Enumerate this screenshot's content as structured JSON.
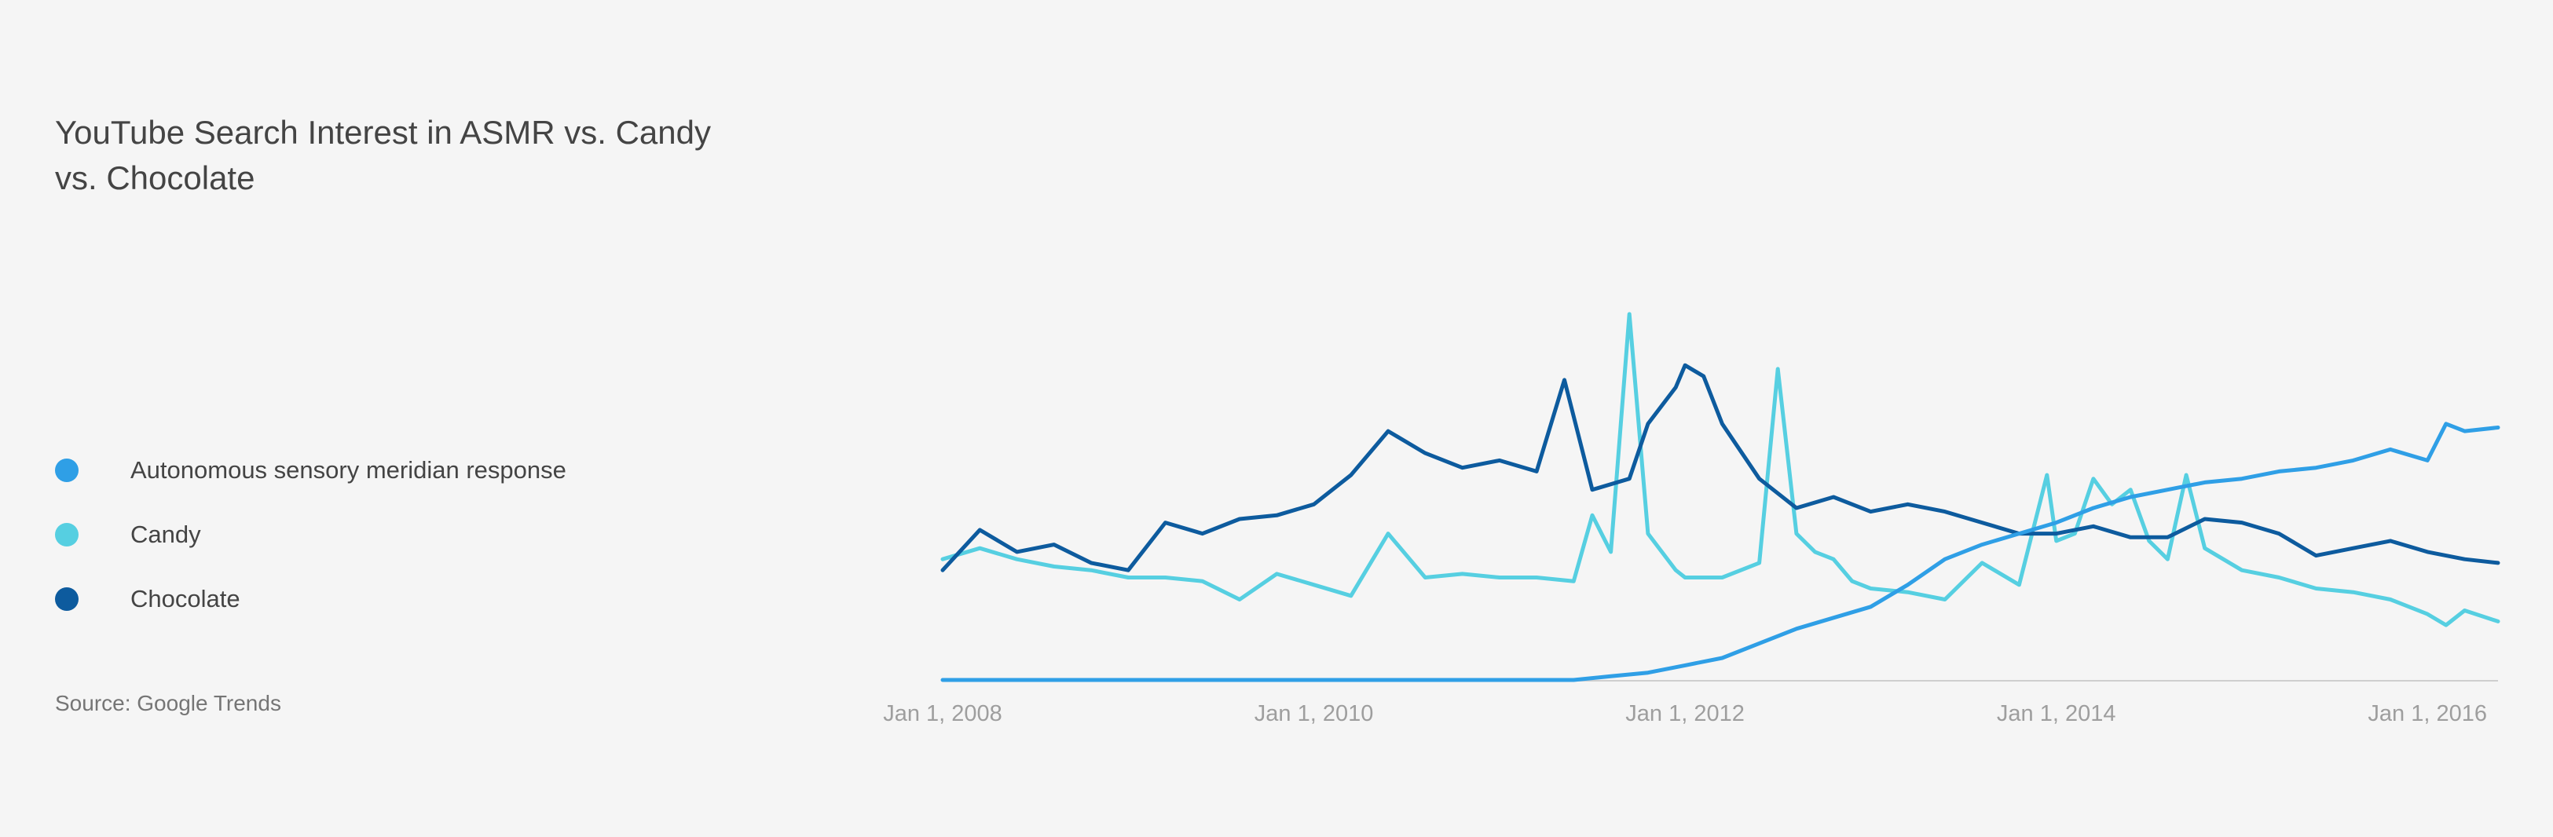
{
  "chart_data": {
    "type": "line",
    "title": "YouTube Search Interest in ASMR vs. Candy vs. Chocolate",
    "xlabel": "",
    "ylabel": "",
    "source": "Source: Google Trends",
    "x_ticks": [
      "Jan 1, 2008",
      "Jan 1, 2010",
      "Jan 1, 2012",
      "Jan 1, 2014",
      "Jan 1, 2016"
    ],
    "x_tick_values": [
      2008,
      2010,
      2012,
      2014,
      2016
    ],
    "xlim": [
      2008,
      2016.38
    ],
    "ylim": [
      0,
      100
    ],
    "grid": false,
    "legend_position": "left",
    "series": [
      {
        "name": "Autonomous sensory meridian response",
        "color": "#2f9fe6",
        "x": [
          2008,
          2009,
          2010,
          2011,
          2011.2,
          2011.4,
          2011.6,
          2011.8,
          2012,
          2012.2,
          2012.4,
          2012.6,
          2012.8,
          2013,
          2013.2,
          2013.4,
          2013.6,
          2013.8,
          2014,
          2014.2,
          2014.4,
          2014.6,
          2014.8,
          2015,
          2015.2,
          2015.4,
          2015.6,
          2015.8,
          2016,
          2016.1,
          2016.2,
          2016.38
        ],
        "values": [
          0,
          0,
          0,
          0,
          0,
          0,
          1,
          2,
          4,
          6,
          10,
          14,
          17,
          20,
          26,
          33,
          37,
          40,
          43,
          47,
          50,
          52,
          54,
          55,
          57,
          58,
          60,
          63,
          60,
          70,
          68,
          69
        ]
      },
      {
        "name": "Candy",
        "color": "#56cfe1",
        "x": [
          2008,
          2008.2,
          2008.4,
          2008.6,
          2008.8,
          2009,
          2009.2,
          2009.4,
          2009.6,
          2009.8,
          2010,
          2010.2,
          2010.4,
          2010.6,
          2010.8,
          2011,
          2011.2,
          2011.4,
          2011.5,
          2011.6,
          2011.7,
          2011.8,
          2011.95,
          2012,
          2012.2,
          2012.4,
          2012.5,
          2012.6,
          2012.7,
          2012.8,
          2012.9,
          2013,
          2013.2,
          2013.4,
          2013.6,
          2013.8,
          2013.95,
          2014,
          2014.1,
          2014.2,
          2014.3,
          2014.4,
          2014.5,
          2014.6,
          2014.7,
          2014.8,
          2015,
          2015.2,
          2015.4,
          2015.6,
          2015.8,
          2016,
          2016.1,
          2016.2,
          2016.38
        ],
        "values": [
          33,
          36,
          33,
          31,
          30,
          28,
          28,
          27,
          22,
          29,
          26,
          23,
          40,
          28,
          29,
          28,
          28,
          27,
          45,
          35,
          100,
          40,
          30,
          28,
          28,
          32,
          85,
          40,
          35,
          33,
          27,
          25,
          24,
          22,
          32,
          26,
          56,
          38,
          40,
          55,
          48,
          52,
          38,
          33,
          56,
          36,
          30,
          28,
          25,
          24,
          22,
          18,
          15,
          19,
          16
        ]
      },
      {
        "name": "Chocolate",
        "color": "#0d5b9e",
        "x": [
          2008,
          2008.2,
          2008.4,
          2008.6,
          2008.8,
          2009,
          2009.2,
          2009.4,
          2009.6,
          2009.8,
          2010,
          2010.2,
          2010.4,
          2010.6,
          2010.8,
          2011,
          2011.2,
          2011.35,
          2011.5,
          2011.7,
          2011.8,
          2011.95,
          2012,
          2012.1,
          2012.2,
          2012.4,
          2012.6,
          2012.8,
          2013,
          2013.2,
          2013.4,
          2013.6,
          2013.8,
          2014,
          2014.2,
          2014.4,
          2014.6,
          2014.8,
          2015,
          2015.2,
          2015.4,
          2015.6,
          2015.8,
          2016,
          2016.1,
          2016.2,
          2016.38
        ],
        "values": [
          30,
          41,
          35,
          37,
          32,
          30,
          43,
          40,
          44,
          45,
          48,
          56,
          68,
          62,
          58,
          60,
          57,
          82,
          52,
          55,
          70,
          80,
          86,
          83,
          70,
          55,
          47,
          50,
          46,
          48,
          46,
          43,
          40,
          40,
          42,
          39,
          39,
          44,
          43,
          40,
          34,
          36,
          38,
          35,
          34,
          33,
          32
        ]
      }
    ]
  }
}
